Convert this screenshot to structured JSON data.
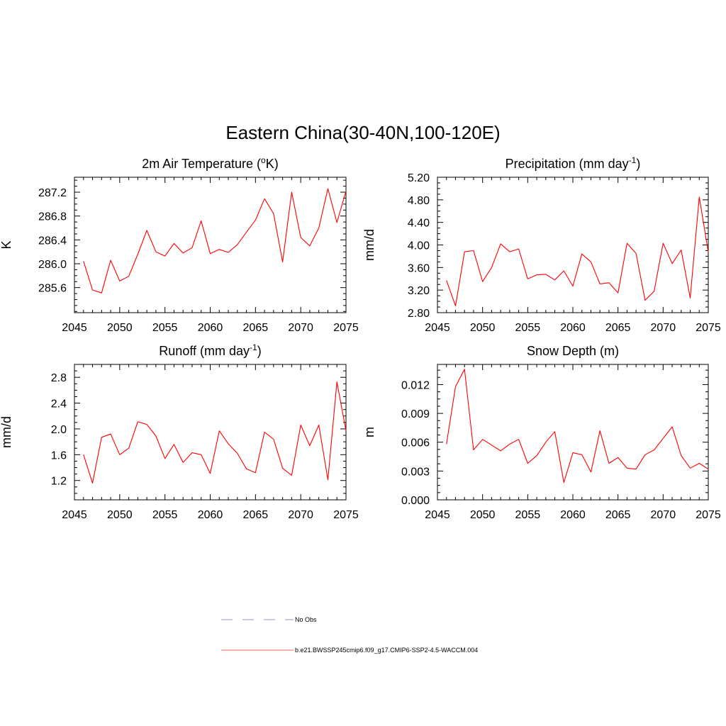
{
  "figure": {
    "title": "Eastern China(30-40N,100-120E)"
  },
  "chart_data": [
    {
      "type": "line",
      "title_main": "2m Air Temperature (",
      "title_sup": "o",
      "title_tail": "K)",
      "ylabel": "K",
      "xlim": [
        2045,
        2075
      ],
      "ylim": [
        285.18,
        287.45
      ],
      "xticks": [
        "2045",
        "2050",
        "2055",
        "2060",
        "2065",
        "2070",
        "2075"
      ],
      "yticks": [
        "285.6",
        "286.0",
        "286.4",
        "286.8",
        "287.2"
      ],
      "x": [
        2046,
        2047,
        2048,
        2049,
        2050,
        2051,
        2052,
        2053,
        2054,
        2055,
        2056,
        2057,
        2058,
        2059,
        2060,
        2061,
        2062,
        2063,
        2064,
        2065,
        2066,
        2067,
        2068,
        2069,
        2070,
        2071,
        2072,
        2073,
        2074,
        2075
      ],
      "series": [
        {
          "color": "#ff0000",
          "values": [
            286.04,
            285.56,
            285.51,
            286.06,
            285.71,
            285.79,
            286.16,
            286.56,
            286.2,
            286.13,
            286.34,
            286.18,
            286.27,
            286.72,
            286.17,
            286.24,
            286.19,
            286.32,
            286.53,
            286.73,
            287.09,
            286.84,
            286.03,
            287.2,
            286.44,
            286.3,
            286.6,
            287.26,
            286.69,
            287.22
          ]
        }
      ]
    },
    {
      "type": "line",
      "title_main": "Precipitation (mm day",
      "title_sup": "-1",
      "title_tail": ")",
      "ylabel": "mm/d",
      "xlim": [
        2045,
        2075
      ],
      "ylim": [
        2.8,
        5.2
      ],
      "xticks": [
        "2045",
        "2050",
        "2055",
        "2060",
        "2065",
        "2070",
        "2075"
      ],
      "yticks": [
        "2.80",
        "3.20",
        "3.60",
        "4.00",
        "4.40",
        "4.80",
        "5.20"
      ],
      "x": [
        2046,
        2047,
        2048,
        2049,
        2050,
        2051,
        2052,
        2053,
        2054,
        2055,
        2056,
        2057,
        2058,
        2059,
        2060,
        2061,
        2062,
        2063,
        2064,
        2065,
        2066,
        2067,
        2068,
        2069,
        2070,
        2071,
        2072,
        2073,
        2074,
        2075
      ],
      "series": [
        {
          "color": "#ff0000",
          "values": [
            3.37,
            2.92,
            3.88,
            3.9,
            3.35,
            3.6,
            4.02,
            3.88,
            3.93,
            3.4,
            3.47,
            3.48,
            3.38,
            3.54,
            3.27,
            3.84,
            3.7,
            3.31,
            3.33,
            3.15,
            4.03,
            3.85,
            3.02,
            3.18,
            4.03,
            3.67,
            3.91,
            3.06,
            4.85,
            3.87
          ]
        }
      ]
    },
    {
      "type": "line",
      "title_main": "Runoff (mm day",
      "title_sup": "-1",
      "title_tail": ")",
      "ylabel": "mm/d",
      "xlim": [
        2045,
        2075
      ],
      "ylim": [
        0.9,
        3.0
      ],
      "xticks": [
        "2045",
        "2050",
        "2055",
        "2060",
        "2065",
        "2070",
        "2075"
      ],
      "yticks": [
        "1.2",
        "1.6",
        "2.0",
        "2.4",
        "2.8"
      ],
      "x": [
        2046,
        2047,
        2048,
        2049,
        2050,
        2051,
        2052,
        2053,
        2054,
        2055,
        2056,
        2057,
        2058,
        2059,
        2060,
        2061,
        2062,
        2063,
        2064,
        2065,
        2066,
        2067,
        2068,
        2069,
        2070,
        2071,
        2072,
        2073,
        2074,
        2075
      ],
      "series": [
        {
          "color": "#ff0000",
          "values": [
            1.6,
            1.16,
            1.87,
            1.92,
            1.6,
            1.7,
            2.11,
            2.07,
            1.89,
            1.54,
            1.76,
            1.48,
            1.63,
            1.6,
            1.31,
            1.97,
            1.77,
            1.62,
            1.38,
            1.32,
            1.95,
            1.84,
            1.39,
            1.28,
            2.06,
            1.74,
            2.06,
            1.21,
            2.73,
            1.97
          ]
        }
      ]
    },
    {
      "type": "line",
      "title_main": "Snow Depth (m)",
      "title_sup": "",
      "title_tail": "",
      "ylabel": "m",
      "xlim": [
        2045,
        2075
      ],
      "ylim": [
        0.0,
        0.0141
      ],
      "xticks": [
        "2045",
        "2050",
        "2055",
        "2060",
        "2065",
        "2070",
        "2075"
      ],
      "yticks": [
        "0.000",
        "0.003",
        "0.006",
        "0.009",
        "0.012"
      ],
      "x": [
        2046,
        2047,
        2048,
        2049,
        2050,
        2051,
        2052,
        2053,
        2054,
        2055,
        2056,
        2057,
        2058,
        2059,
        2060,
        2061,
        2062,
        2063,
        2064,
        2065,
        2066,
        2067,
        2068,
        2069,
        2070,
        2071,
        2072,
        2073,
        2074,
        2075
      ],
      "series": [
        {
          "color": "#ff0000",
          "values": [
            0.0058,
            0.0118,
            0.0136,
            0.0052,
            0.0063,
            0.0057,
            0.0051,
            0.0058,
            0.0063,
            0.0038,
            0.0046,
            0.006,
            0.0071,
            0.0018,
            0.0049,
            0.0047,
            0.0029,
            0.0072,
            0.0038,
            0.0044,
            0.0033,
            0.0032,
            0.0047,
            0.0052,
            0.0064,
            0.0076,
            0.0046,
            0.0033,
            0.0038,
            0.0032
          ]
        }
      ]
    }
  ],
  "legend": {
    "items": [
      {
        "label": "No Obs",
        "color": "#aaaadd",
        "style": "dashed"
      },
      {
        "label": "b.e21.BWSSP245cmip6.f09_g17.CMIP6-SSP2-4.5-WACCM.004",
        "color": "#ff8080",
        "style": "solid"
      }
    ]
  }
}
